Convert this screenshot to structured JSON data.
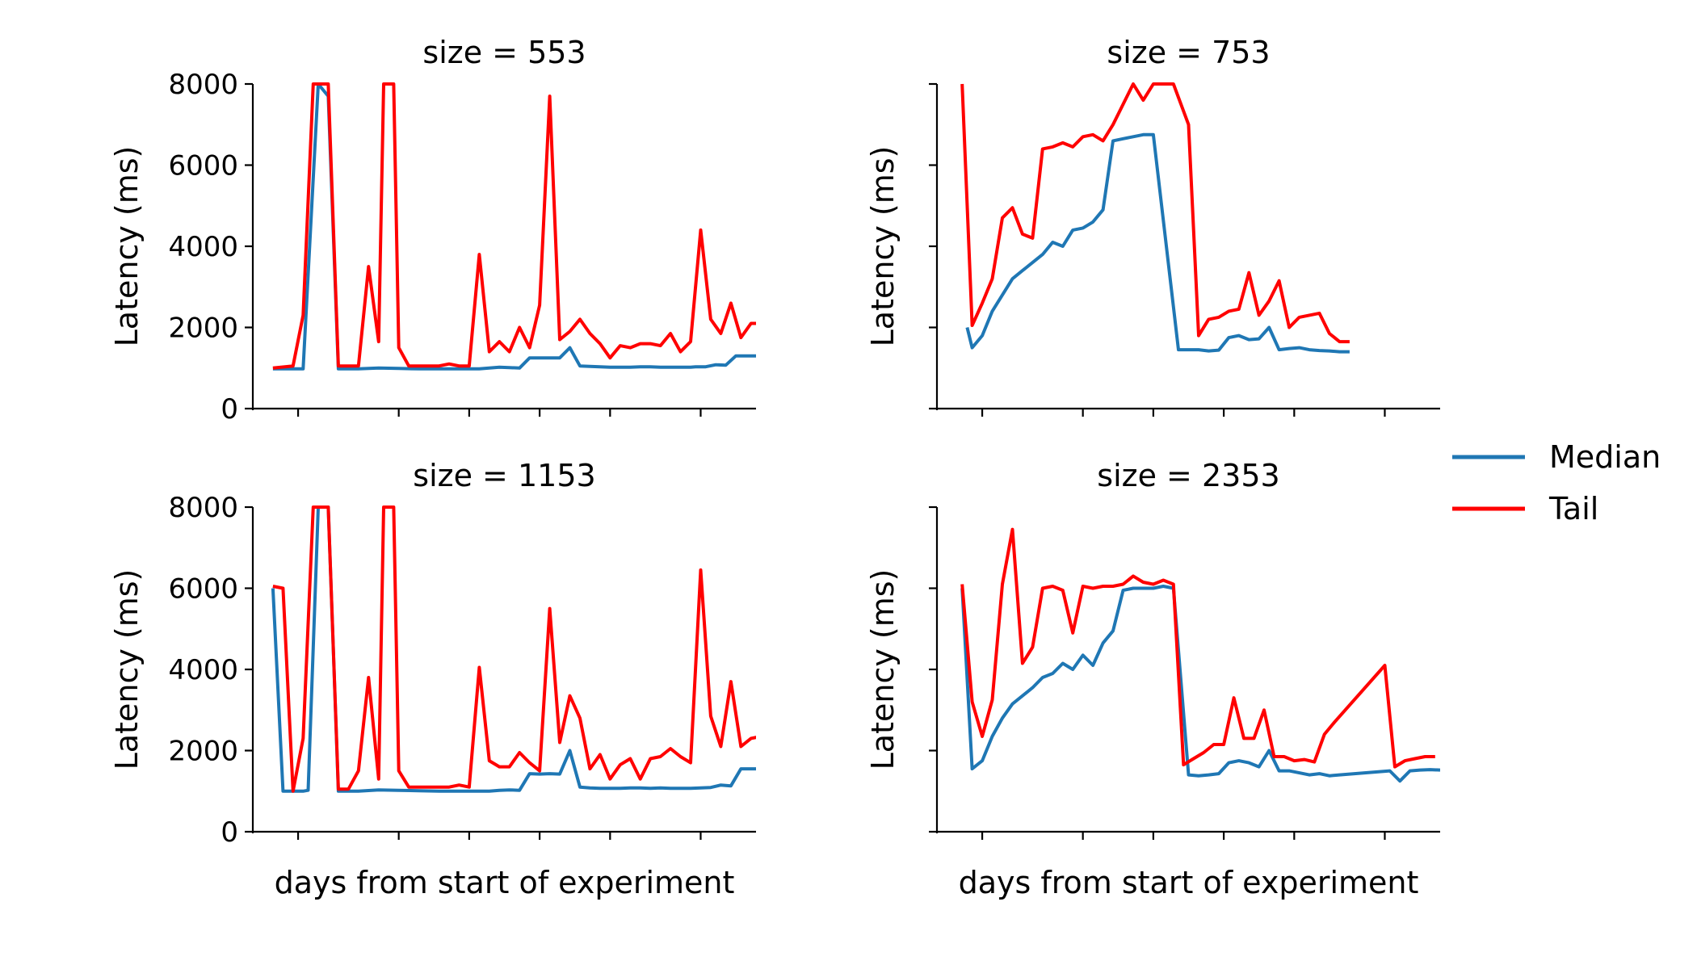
{
  "legend": {
    "entries": [
      {
        "label": "Median",
        "color": "#1f77b4"
      },
      {
        "label": "Tail",
        "color": "#ff0000"
      }
    ],
    "placement": "right"
  },
  "chart_data": [
    {
      "type": "line",
      "title": "size = 553",
      "xlabel": "",
      "ylabel": "Latency (ms)",
      "ylim": [
        0,
        8000
      ],
      "yticks": [
        0,
        2000,
        4000,
        6000,
        8000
      ],
      "ytick_labels": [
        "0",
        "2000",
        "4000",
        "6000",
        "8000"
      ],
      "show_ytick_labels": true,
      "xlim": [
        0,
        100
      ],
      "xticks": [
        9,
        29,
        43,
        57,
        71,
        89,
        104
      ],
      "grid": false,
      "series": [
        {
          "name": "Median",
          "color": "#1f77b4",
          "x": [
            4,
            10,
            13,
            15,
            17,
            21,
            25,
            29,
            33,
            37,
            41,
            45,
            47,
            49,
            51,
            53,
            55,
            57,
            59,
            61,
            63,
            65,
            67,
            69,
            71,
            73,
            75,
            77,
            79,
            81,
            83,
            85,
            87,
            88,
            90,
            92,
            94,
            96,
            98,
            100
          ],
          "y": [
            980,
            980,
            8000,
            7700,
            980,
            980,
            1000,
            990,
            980,
            980,
            980,
            980,
            1000,
            1020,
            1010,
            1000,
            1250,
            1250,
            1250,
            1250,
            1500,
            1050,
            1040,
            1030,
            1020,
            1020,
            1020,
            1030,
            1030,
            1020,
            1020,
            1020,
            1020,
            1030,
            1030,
            1080,
            1070,
            1300,
            1300,
            1300
          ]
        },
        {
          "name": "Tail",
          "color": "#ff0000",
          "x": [
            4,
            8,
            10,
            12,
            13,
            15,
            17,
            19,
            21,
            23,
            25,
            26,
            27,
            28,
            29,
            31,
            33,
            35,
            37,
            39,
            41,
            43,
            45,
            47,
            49,
            51,
            53,
            55,
            57,
            59,
            61,
            63,
            65,
            67,
            69,
            71,
            73,
            75,
            77,
            79,
            81,
            83,
            85,
            87,
            89,
            91,
            93,
            95,
            97,
            99,
            101
          ],
          "y": [
            1000,
            1050,
            2300,
            8000,
            8000,
            8000,
            1050,
            1050,
            1050,
            3500,
            1650,
            8000,
            8000,
            8000,
            1500,
            1050,
            1050,
            1050,
            1050,
            1100,
            1050,
            1050,
            3800,
            1400,
            1650,
            1400,
            2000,
            1500,
            2550,
            7700,
            1700,
            1900,
            2200,
            1850,
            1600,
            1250,
            1550,
            1500,
            1600,
            1600,
            1550,
            1850,
            1400,
            1650,
            4400,
            2200,
            1850,
            2600,
            1750,
            2100,
            2100
          ]
        }
      ]
    },
    {
      "type": "line",
      "title": "size = 753",
      "xlabel": "",
      "ylabel": "Latency (ms)",
      "ylim": [
        0,
        8000
      ],
      "yticks": [
        0,
        2000,
        4000,
        6000,
        8000
      ],
      "ytick_labels": [
        "0",
        "2000",
        "4000",
        "6000",
        "8000"
      ],
      "show_ytick_labels": false,
      "xlim": [
        0,
        100
      ],
      "xticks": [
        9,
        29,
        43,
        57,
        71,
        89,
        104
      ],
      "grid": false,
      "series": [
        {
          "name": "Median",
          "color": "#1f77b4",
          "x": [
            6,
            7,
            9,
            11,
            13,
            15,
            17,
            19,
            21,
            23,
            25,
            27,
            29,
            31,
            33,
            35,
            37,
            39,
            41,
            43,
            48,
            52,
            54,
            56,
            58,
            60,
            62,
            64,
            66,
            68,
            70,
            72,
            74,
            76,
            78,
            80,
            82
          ],
          "y": [
            2000,
            1500,
            1800,
            2400,
            2800,
            3200,
            3400,
            3600,
            3800,
            4100,
            4000,
            4400,
            4450,
            4600,
            4900,
            6600,
            6650,
            6700,
            6750,
            6750,
            1450,
            1450,
            1420,
            1440,
            1750,
            1800,
            1700,
            1720,
            2000,
            1450,
            1480,
            1500,
            1450,
            1430,
            1420,
            1400,
            1400
          ]
        },
        {
          "name": "Tail",
          "color": "#ff0000",
          "x": [
            5,
            7,
            9,
            11,
            13,
            15,
            17,
            19,
            21,
            23,
            25,
            27,
            29,
            31,
            33,
            35,
            37,
            39,
            41,
            43,
            45,
            47,
            50,
            52,
            54,
            56,
            58,
            60,
            62,
            64,
            66,
            68,
            70,
            72,
            74,
            76,
            78,
            80,
            82
          ],
          "y": [
            8000,
            2050,
            2600,
            3200,
            4700,
            4950,
            4300,
            4200,
            6400,
            6450,
            6550,
            6450,
            6700,
            6750,
            6600,
            7000,
            7500,
            8000,
            7600,
            8000,
            8000,
            8000,
            7000,
            1800,
            2200,
            2250,
            2400,
            2450,
            3350,
            2300,
            2650,
            3150,
            2000,
            2250,
            2300,
            2350,
            1850,
            1650,
            1650
          ]
        }
      ]
    },
    {
      "type": "line",
      "title": "size = 1153",
      "xlabel": "days from start of experiment",
      "ylabel": "Latency (ms)",
      "ylim": [
        0,
        8000
      ],
      "yticks": [
        0,
        2000,
        4000,
        6000,
        8000
      ],
      "ytick_labels": [
        "0",
        "2000",
        "4000",
        "6000",
        "8000"
      ],
      "show_ytick_labels": true,
      "xlim": [
        0,
        100
      ],
      "xticks": [
        9,
        29,
        43,
        57,
        71,
        89,
        104
      ],
      "grid": false,
      "series": [
        {
          "name": "Median",
          "color": "#1f77b4",
          "x": [
            4,
            6,
            10,
            11,
            13,
            15,
            17,
            21,
            25,
            29,
            33,
            37,
            41,
            45,
            47,
            49,
            51,
            53,
            55,
            57,
            59,
            61,
            63,
            65,
            67,
            69,
            71,
            73,
            75,
            77,
            79,
            81,
            83,
            85,
            87,
            89,
            91,
            93,
            95,
            97,
            100
          ],
          "y": [
            6000,
            1000,
            1000,
            1020,
            8000,
            8000,
            1000,
            1000,
            1030,
            1020,
            1010,
            1000,
            1000,
            1000,
            1000,
            1020,
            1030,
            1020,
            1430,
            1420,
            1430,
            1420,
            2000,
            1100,
            1080,
            1070,
            1070,
            1070,
            1080,
            1080,
            1070,
            1080,
            1070,
            1070,
            1070,
            1080,
            1090,
            1150,
            1130,
            1550,
            1550
          ]
        },
        {
          "name": "Tail",
          "color": "#ff0000",
          "x": [
            4,
            6,
            8,
            10,
            12,
            13,
            15,
            17,
            19,
            21,
            23,
            25,
            26,
            27,
            28,
            29,
            31,
            33,
            35,
            37,
            39,
            41,
            43,
            45,
            47,
            49,
            51,
            53,
            55,
            57,
            59,
            61,
            63,
            65,
            67,
            69,
            71,
            73,
            75,
            77,
            79,
            81,
            83,
            85,
            87,
            89,
            91,
            93,
            95,
            97,
            99,
            101
          ],
          "y": [
            6050,
            6000,
            1000,
            2300,
            8000,
            8000,
            8000,
            1050,
            1050,
            1500,
            3800,
            1300,
            8000,
            8000,
            8000,
            1500,
            1100,
            1100,
            1100,
            1100,
            1100,
            1150,
            1100,
            4050,
            1750,
            1600,
            1600,
            1950,
            1700,
            1500,
            5500,
            2200,
            3350,
            2800,
            1550,
            1900,
            1300,
            1650,
            1800,
            1300,
            1800,
            1850,
            2050,
            1850,
            1700,
            6450,
            2850,
            2100,
            3700,
            2100,
            2300,
            2350
          ]
        }
      ]
    },
    {
      "type": "line",
      "title": "size = 2353",
      "xlabel": "days from start of experiment",
      "ylabel": "Latency (ms)",
      "ylim": [
        0,
        8000
      ],
      "yticks": [
        0,
        2000,
        4000,
        6000,
        8000
      ],
      "ytick_labels": [
        "0",
        "2000",
        "4000",
        "6000",
        "8000"
      ],
      "show_ytick_labels": false,
      "xlim": [
        0,
        100
      ],
      "xticks": [
        9,
        29,
        43,
        57,
        71,
        89,
        104
      ],
      "grid": false,
      "series": [
        {
          "name": "Median",
          "color": "#1f77b4",
          "x": [
            5,
            7,
            9,
            11,
            13,
            15,
            17,
            19,
            21,
            23,
            25,
            27,
            29,
            31,
            33,
            35,
            37,
            39,
            41,
            43,
            45,
            47,
            50,
            52,
            54,
            56,
            58,
            60,
            62,
            64,
            66,
            68,
            70,
            72,
            74,
            76,
            78,
            80,
            90,
            92,
            94,
            96,
            98,
            100
          ],
          "y": [
            6000,
            1550,
            1750,
            2350,
            2800,
            3150,
            3350,
            3550,
            3800,
            3900,
            4150,
            4000,
            4350,
            4100,
            4650,
            4950,
            5950,
            6000,
            6000,
            6000,
            6050,
            6000,
            1400,
            1380,
            1400,
            1430,
            1700,
            1750,
            1700,
            1600,
            2000,
            1500,
            1500,
            1450,
            1400,
            1430,
            1380,
            1400,
            1500,
            1250,
            1500,
            1520,
            1530,
            1520
          ]
        },
        {
          "name": "Tail",
          "color": "#ff0000",
          "x": [
            5,
            7,
            9,
            11,
            13,
            15,
            17,
            19,
            21,
            23,
            25,
            27,
            29,
            31,
            33,
            35,
            37,
            39,
            41,
            43,
            45,
            47,
            49,
            51,
            53,
            55,
            57,
            59,
            61,
            63,
            65,
            67,
            69,
            71,
            73,
            75,
            77,
            79,
            89,
            91,
            93,
            95,
            97,
            99
          ],
          "y": [
            6100,
            3200,
            2350,
            3250,
            6100,
            7450,
            4150,
            4550,
            6000,
            6050,
            5950,
            4900,
            6050,
            6000,
            6050,
            6050,
            6100,
            6300,
            6150,
            6100,
            6200,
            6100,
            1650,
            1800,
            1950,
            2150,
            2150,
            3300,
            2300,
            2300,
            3000,
            1850,
            1850,
            1750,
            1780,
            1720,
            2400,
            2700,
            4100,
            1600,
            1750,
            1800,
            1850,
            1850
          ]
        }
      ]
    }
  ]
}
